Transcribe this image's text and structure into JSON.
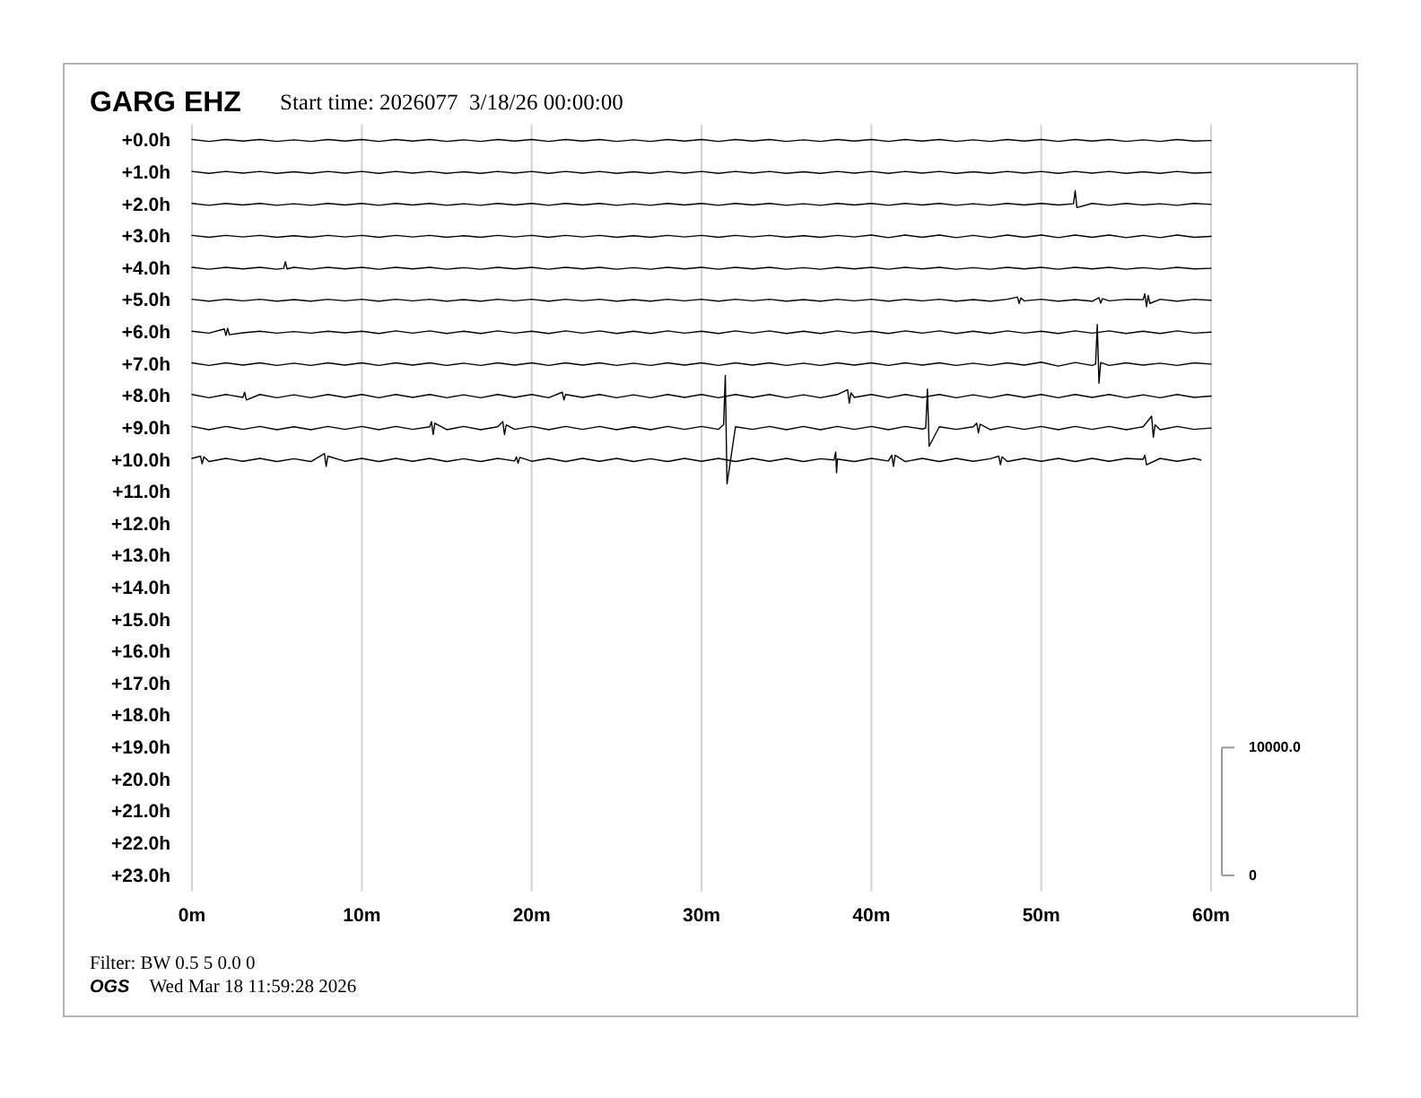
{
  "chart_data": {
    "type": "line",
    "title": "GARG EHZ",
    "subtitle": "Start time: 2026077  3/18/26 00:00:00",
    "annotations": [
      "Filter: BW 0.5 5 0.0 0",
      "OGS",
      "Wed Mar 18 11:59:28 2026"
    ],
    "xlim": [
      0,
      60
    ],
    "xticks": [
      {
        "value": 0,
        "label": "0m"
      },
      {
        "value": 10,
        "label": "10m"
      },
      {
        "value": 20,
        "label": "20m"
      },
      {
        "value": 30,
        "label": "30m"
      },
      {
        "value": 40,
        "label": "40m"
      },
      {
        "value": 50,
        "label": "50m"
      },
      {
        "value": 60,
        "label": "60m"
      }
    ],
    "ylim": [
      23.5,
      -0.5
    ],
    "yticks": [
      {
        "value": 0,
        "label": "+0.0h"
      },
      {
        "value": 1,
        "label": "+1.0h"
      },
      {
        "value": 2,
        "label": "+2.0h"
      },
      {
        "value": 3,
        "label": "+3.0h"
      },
      {
        "value": 4,
        "label": "+4.0h"
      },
      {
        "value": 5,
        "label": "+5.0h"
      },
      {
        "value": 6,
        "label": "+6.0h"
      },
      {
        "value": 7,
        "label": "+7.0h"
      },
      {
        "value": 8,
        "label": "+8.0h"
      },
      {
        "value": 9,
        "label": "+9.0h"
      },
      {
        "value": 10,
        "label": "+10.0h"
      },
      {
        "value": 11,
        "label": "+11.0h"
      },
      {
        "value": 12,
        "label": "+12.0h"
      },
      {
        "value": 13,
        "label": "+13.0h"
      },
      {
        "value": 14,
        "label": "+14.0h"
      },
      {
        "value": 15,
        "label": "+15.0h"
      },
      {
        "value": 16,
        "label": "+16.0h"
      },
      {
        "value": 17,
        "label": "+17.0h"
      },
      {
        "value": 18,
        "label": "+18.0h"
      },
      {
        "value": 19,
        "label": "+19.0h"
      },
      {
        "value": 20,
        "label": "+20.0h"
      },
      {
        "value": 21,
        "label": "+21.0h"
      },
      {
        "value": 22,
        "label": "+22.0h"
      },
      {
        "value": 23,
        "label": "+23.0h"
      }
    ],
    "y2lim": [
      -1250,
      58750
    ],
    "y2ticks": [
      0,
      {
        "value": 10000,
        "label": "10000.0"
      }
    ],
    "grid": "x",
    "x": [
      0,
      1,
      2,
      3,
      4,
      5,
      6,
      7,
      8,
      9,
      10,
      11,
      12,
      13,
      14,
      15,
      16,
      17,
      18,
      19,
      20,
      21,
      22,
      23,
      24,
      25,
      26,
      27,
      28,
      29,
      30,
      31,
      32,
      33,
      34,
      35,
      36,
      37,
      38,
      39,
      40,
      41,
      42,
      43,
      44,
      45,
      46,
      47,
      48,
      49,
      50,
      51,
      52,
      53,
      54,
      55,
      56,
      57,
      58,
      59,
      60
    ],
    "series": [
      {
        "color": "#000000",
        "values": [
          -0.03,
          0.03,
          -0.03,
          0.02,
          -0.03,
          0.03,
          -0.02,
          0.03,
          -0.03,
          0.02,
          -0.03,
          0.03,
          -0.03,
          0.02,
          -0.03,
          0.03,
          -0.02,
          0.03,
          -0.03,
          0.02,
          -0.03,
          0.03,
          -0.03,
          0.02,
          -0.03,
          0.03,
          -0.02,
          0.03,
          -0.03,
          0.02,
          -0.03,
          0.03,
          -0.03,
          0.02,
          -0.03,
          0.03,
          -0.02,
          0.03,
          -0.03,
          0.02,
          -0.03,
          0.03,
          -0.03,
          0.02,
          -0.03,
          0.03,
          -0.02,
          0.03,
          -0.03,
          0.02,
          -0.03,
          0.03,
          -0.03,
          0.02,
          -0.03,
          0.03,
          -0.02,
          0.03,
          -0.03,
          0.02,
          0
        ]
      },
      {
        "color": "#000000",
        "values": [
          0.97,
          1.03,
          0.97,
          1.02,
          0.97,
          1.03,
          0.98,
          1.03,
          0.97,
          1.02,
          0.97,
          1.03,
          0.97,
          1.02,
          0.97,
          1.03,
          0.98,
          1.03,
          0.97,
          1.02,
          0.97,
          1.03,
          0.97,
          1.02,
          0.97,
          1.03,
          0.98,
          1.03,
          0.97,
          1.02,
          0.97,
          1.03,
          0.97,
          1.02,
          0.97,
          1.03,
          0.98,
          1.03,
          0.97,
          1.02,
          0.97,
          1.03,
          0.97,
          1.02,
          0.97,
          1.03,
          0.98,
          1.03,
          0.97,
          1.02,
          0.97,
          1.03,
          0.97,
          1.02,
          0.97,
          1.03,
          0.98,
          1.03,
          0.97,
          1.02,
          1
        ]
      },
      {
        "color": "#000000",
        "x": [
          0,
          1,
          2,
          3,
          4,
          5,
          6,
          7,
          8,
          9,
          10,
          11,
          12,
          13,
          14,
          15,
          16,
          17,
          18,
          19,
          20,
          21,
          22,
          23,
          24,
          25,
          26,
          27,
          28,
          29,
          30,
          31,
          32,
          33,
          34,
          35,
          36,
          37,
          38,
          39,
          40,
          41,
          42,
          43,
          44,
          45,
          46,
          47,
          48,
          49,
          50,
          51,
          51.9,
          52,
          52.1,
          53,
          54,
          55,
          56,
          57,
          58,
          59,
          60
        ],
        "values": [
          1.97,
          2.03,
          1.97,
          2.02,
          1.97,
          2.03,
          1.98,
          2.03,
          1.97,
          2.02,
          1.97,
          2.03,
          1.97,
          2.02,
          1.97,
          2.03,
          1.98,
          2.03,
          1.97,
          2.02,
          1.97,
          2.03,
          1.97,
          2.02,
          1.97,
          2.03,
          1.98,
          2.03,
          1.97,
          2.02,
          1.97,
          2.03,
          1.97,
          2.02,
          1.97,
          2.03,
          1.98,
          2.03,
          1.97,
          2.02,
          1.97,
          2.03,
          1.97,
          2.02,
          1.97,
          2.03,
          1.98,
          2.03,
          1.97,
          2.02,
          1.97,
          2.02,
          1.98,
          1.57,
          2.1,
          1.97,
          2.03,
          1.97,
          2.02,
          1.98,
          2.03,
          1.97,
          2
        ]
      },
      {
        "color": "#000000",
        "values": [
          2.97,
          3.03,
          2.97,
          3.02,
          2.97,
          3.03,
          2.98,
          3.03,
          2.97,
          3.02,
          2.97,
          3.03,
          2.97,
          3.02,
          2.97,
          3.03,
          2.98,
          3.03,
          2.97,
          3.02,
          2.97,
          3.03,
          2.97,
          3.02,
          2.97,
          3.03,
          2.98,
          3.03,
          2.97,
          3.02,
          2.97,
          3.03,
          2.97,
          3.02,
          2.97,
          3.03,
          2.98,
          3.03,
          2.97,
          3.02,
          2.96,
          3.04,
          2.96,
          3.03,
          2.96,
          3.04,
          2.97,
          3.04,
          2.96,
          3.03,
          2.96,
          3.04,
          2.96,
          3.03,
          2.96,
          3.04,
          2.97,
          3.04,
          2.96,
          3.03,
          3
        ]
      },
      {
        "color": "#000000",
        "x": [
          0,
          1,
          2,
          3,
          4,
          5,
          5.4,
          5.5,
          5.6,
          6,
          7,
          8,
          9,
          10,
          11,
          12,
          13,
          14,
          15,
          16,
          17,
          18,
          19,
          20,
          21,
          22,
          23,
          24,
          25,
          26,
          27,
          28,
          29,
          30,
          31,
          32,
          33,
          34,
          35,
          36,
          37,
          38,
          39,
          40,
          41,
          42,
          43,
          44,
          45,
          46,
          47,
          48,
          49,
          50,
          51,
          52,
          53,
          54,
          55,
          56,
          57,
          58,
          59,
          60
        ],
        "values": [
          3.97,
          4.03,
          3.97,
          4.02,
          3.97,
          4.03,
          4,
          3.79,
          4.02,
          3.97,
          4.03,
          3.97,
          4.02,
          3.97,
          4.03,
          3.97,
          4.02,
          3.97,
          4.03,
          3.98,
          4.03,
          3.97,
          4.02,
          3.97,
          4.03,
          3.97,
          4.02,
          3.97,
          4.03,
          3.98,
          4.03,
          3.97,
          4.02,
          3.97,
          4.03,
          3.97,
          4.02,
          3.97,
          4.03,
          3.98,
          4.03,
          3.97,
          4.02,
          3.97,
          4.03,
          3.97,
          4.02,
          3.97,
          4.03,
          3.98,
          4.03,
          3.97,
          4.02,
          3.97,
          4.03,
          3.97,
          4.02,
          3.97,
          4.03,
          3.98,
          4.03,
          3.97,
          4.02,
          4
        ]
      },
      {
        "color": "#000000",
        "x": [
          0,
          1,
          2,
          3,
          4,
          5,
          6,
          7,
          8,
          9,
          10,
          11,
          12,
          13,
          14,
          15,
          16,
          17,
          18,
          19,
          20,
          21,
          22,
          23,
          24,
          25,
          26,
          27,
          28,
          29,
          30,
          31,
          32,
          33,
          34,
          35,
          36,
          37,
          38,
          39,
          40,
          41,
          42,
          43,
          44,
          45,
          46,
          47,
          48,
          48.6,
          48.7,
          48.8,
          49,
          50,
          51,
          52,
          53,
          53.4,
          53.5,
          53.6,
          54,
          55,
          56,
          56.1,
          56.2,
          56.3,
          56.4,
          57,
          58,
          59,
          60
        ],
        "values": [
          4.97,
          5.03,
          4.97,
          5.02,
          4.97,
          5.03,
          4.98,
          5.03,
          4.97,
          5.02,
          4.97,
          5.03,
          4.97,
          5.02,
          4.97,
          5.03,
          4.98,
          5.03,
          4.97,
          5.02,
          4.97,
          5.03,
          4.97,
          5.02,
          4.97,
          5.03,
          4.98,
          5.03,
          4.97,
          5.02,
          4.97,
          5.03,
          4.97,
          5.02,
          4.97,
          5.03,
          4.98,
          5.03,
          4.97,
          5.02,
          4.97,
          5.03,
          4.97,
          5.02,
          4.97,
          5.03,
          4.98,
          5.03,
          4.97,
          4.9,
          5.1,
          4.93,
          5.02,
          4.97,
          5.03,
          4.98,
          5.03,
          4.92,
          5.09,
          4.95,
          5.02,
          4.97,
          4.98,
          4.8,
          5.2,
          4.85,
          5.1,
          4.97,
          5.03,
          4.97,
          5
        ]
      },
      {
        "color": "#000000",
        "x": [
          0,
          1,
          1.9,
          2,
          2.1,
          2.2,
          3,
          4,
          5,
          6,
          7,
          8,
          9,
          10,
          11,
          12,
          13,
          14,
          15,
          16,
          17,
          18,
          19,
          20,
          21,
          22,
          23,
          24,
          25,
          26,
          27,
          28,
          29,
          30,
          31,
          32,
          33,
          34,
          35,
          36,
          37,
          38,
          39,
          40,
          41,
          42,
          43,
          44,
          45,
          46,
          47,
          48,
          49,
          50,
          51,
          52,
          53,
          54,
          55,
          56,
          57,
          58,
          59,
          60
        ],
        "values": [
          5.97,
          6.03,
          5.9,
          6.1,
          5.88,
          6.08,
          6.02,
          5.97,
          6.03,
          5.98,
          6.03,
          5.97,
          6.02,
          5.97,
          6.04,
          5.96,
          6.03,
          5.96,
          6.04,
          5.97,
          6.04,
          5.96,
          6.03,
          5.97,
          6.04,
          5.96,
          6.03,
          5.96,
          6.04,
          5.97,
          6.04,
          5.96,
          6.03,
          5.97,
          6.04,
          5.96,
          6.03,
          5.96,
          6.04,
          5.97,
          6.04,
          5.96,
          6.03,
          5.97,
          6.04,
          5.96,
          6.03,
          5.96,
          6.04,
          5.97,
          6.04,
          5.96,
          6.03,
          5.97,
          6.04,
          5.96,
          6.03,
          5.96,
          6.04,
          5.97,
          6.04,
          5.96,
          6.03,
          6
        ]
      },
      {
        "color": "#000000",
        "x": [
          0,
          1,
          2,
          3,
          4,
          5,
          6,
          7,
          8,
          9,
          10,
          11,
          12,
          13,
          14,
          15,
          16,
          17,
          18,
          19,
          20,
          21,
          22,
          23,
          24,
          25,
          26,
          27,
          28,
          29,
          30,
          31,
          32,
          33,
          34,
          35,
          36,
          37,
          38,
          39,
          40,
          41,
          42,
          43,
          44,
          45,
          46,
          47,
          48,
          49,
          50,
          51,
          52,
          53,
          53.2,
          53.3,
          53.4,
          53.5,
          54,
          55,
          56,
          57,
          58,
          59,
          60
        ],
        "values": [
          6.96,
          7.04,
          6.96,
          7.03,
          6.96,
          7.04,
          6.97,
          7.04,
          6.96,
          7.03,
          6.96,
          7.04,
          6.96,
          7.03,
          6.96,
          7.04,
          6.97,
          7.04,
          6.96,
          7.03,
          6.96,
          7.04,
          6.96,
          7.03,
          6.96,
          7.04,
          6.97,
          7.04,
          6.96,
          7.03,
          6.96,
          7.04,
          6.96,
          7.03,
          6.96,
          7.04,
          6.97,
          7.04,
          6.96,
          7.03,
          6.96,
          7.04,
          6.96,
          7.03,
          6.96,
          7.04,
          6.97,
          7.04,
          6.96,
          7.03,
          6.94,
          7.06,
          6.95,
          7.04,
          7,
          5.76,
          7.6,
          6.95,
          7.04,
          6.96,
          7.03,
          6.97,
          7.04,
          6.96,
          7
        ]
      },
      {
        "color": "#000000",
        "x": [
          0,
          1,
          2,
          3,
          3.1,
          3.2,
          4,
          5,
          6,
          7,
          8,
          9,
          10,
          11,
          12,
          13,
          14,
          15,
          16,
          17,
          18,
          19,
          20,
          21,
          21.8,
          21.9,
          22,
          23,
          24,
          25,
          26,
          27,
          28,
          29,
          30,
          31,
          32,
          33,
          34,
          35,
          36,
          37,
          38,
          38.6,
          38.7,
          38.8,
          39,
          40,
          41,
          42,
          43,
          44,
          45,
          46,
          47,
          48,
          49,
          50,
          51,
          52,
          53,
          54,
          55,
          56,
          57,
          58,
          59,
          60
        ],
        "values": [
          7.95,
          8.05,
          7.95,
          8.04,
          7.88,
          8.12,
          7.95,
          8.05,
          7.96,
          8.05,
          7.95,
          8.04,
          7.95,
          8.05,
          7.95,
          8.04,
          7.95,
          8.05,
          7.96,
          8.05,
          7.95,
          8.04,
          7.95,
          8.05,
          7.88,
          8.12,
          7.95,
          8.04,
          7.95,
          8.05,
          7.96,
          8.05,
          7.95,
          8.04,
          7.95,
          8.05,
          7.95,
          8.04,
          7.95,
          8.05,
          7.96,
          8.05,
          7.95,
          7.8,
          8.22,
          7.9,
          8.04,
          7.95,
          8.05,
          7.95,
          8.04,
          7.95,
          8.05,
          7.96,
          8.05,
          7.95,
          8.04,
          7.95,
          8.05,
          7.95,
          8.04,
          7.95,
          8.05,
          7.96,
          8.05,
          7.95,
          8.04,
          8
        ]
      },
      {
        "color": "#000000",
        "x": [
          0,
          1,
          2,
          3,
          4,
          5,
          6,
          7,
          8,
          9,
          10,
          11,
          12,
          13,
          14,
          14.1,
          14.2,
          14.3,
          15,
          16,
          17,
          18,
          18.3,
          18.4,
          18.5,
          19,
          20,
          21,
          22,
          23,
          24,
          25,
          26,
          27,
          28,
          29,
          30,
          31,
          31.3,
          31.4,
          31.5,
          32,
          33,
          34,
          35,
          36,
          37,
          38,
          39,
          40,
          41,
          42,
          43,
          43.2,
          43.3,
          43.4,
          44,
          45,
          46,
          46.2,
          46.3,
          46.4,
          47,
          48,
          49,
          50,
          51,
          52,
          53,
          54,
          55,
          56,
          56.5,
          56.6,
          56.7,
          57,
          58,
          59,
          60
        ],
        "values": [
          8.95,
          9.05,
          8.95,
          9.04,
          8.95,
          9.05,
          8.96,
          9.05,
          8.95,
          9.04,
          8.95,
          9.05,
          8.95,
          9.04,
          8.96,
          8.8,
          9.2,
          8.85,
          9.05,
          8.95,
          9.05,
          8.96,
          8.8,
          9.2,
          8.9,
          9.04,
          8.95,
          9.05,
          8.95,
          9.04,
          8.95,
          9.05,
          8.96,
          9.05,
          8.95,
          9.04,
          8.95,
          9.04,
          8.9,
          7.35,
          10.75,
          8.96,
          9.04,
          8.95,
          9.05,
          8.95,
          9.05,
          8.95,
          9.04,
          8.95,
          9.05,
          8.95,
          9.03,
          9,
          7.78,
          9.57,
          8.96,
          9.04,
          8.96,
          8.85,
          9.15,
          8.88,
          9.05,
          8.95,
          9.04,
          8.95,
          9.05,
          8.95,
          9.04,
          8.95,
          9.05,
          8.96,
          8.63,
          9.29,
          8.9,
          9.05,
          8.95,
          9.04,
          9
        ]
      },
      {
        "color": "#000000",
        "x": [
          0,
          0.5,
          0.6,
          0.7,
          1,
          2,
          3,
          4,
          5,
          6,
          7,
          7.8,
          7.9,
          8,
          9,
          10,
          11,
          12,
          13,
          14,
          15,
          16,
          17,
          18,
          19,
          19.1,
          19.2,
          19.3,
          20,
          21,
          22,
          23,
          24,
          25,
          26,
          27,
          28,
          29,
          30,
          31,
          32,
          33,
          34,
          35,
          36,
          37,
          37.8,
          37.9,
          37.95,
          38,
          39,
          40,
          41,
          41.2,
          41.3,
          41.4,
          42,
          43,
          44,
          45,
          46,
          47,
          47.5,
          47.6,
          47.7,
          48,
          49,
          50,
          51,
          52,
          53,
          54,
          55,
          56,
          56.1,
          56.2,
          57,
          58,
          59,
          59.4
        ],
        "values": [
          9.95,
          9.88,
          10.12,
          9.9,
          10.05,
          9.95,
          10.04,
          9.95,
          10.05,
          9.96,
          10.05,
          9.8,
          10.2,
          9.88,
          10.04,
          9.95,
          10.05,
          9.95,
          10.04,
          9.95,
          10.05,
          9.96,
          10.05,
          9.95,
          10.03,
          9.9,
          10.1,
          9.92,
          10.04,
          9.95,
          10.05,
          9.95,
          10.04,
          9.95,
          10.05,
          9.96,
          10.05,
          9.95,
          10.04,
          9.95,
          10.05,
          9.95,
          10.04,
          9.95,
          10.05,
          9.96,
          10,
          9.75,
          10.4,
          9.97,
          10.05,
          9.95,
          10.03,
          9.85,
          10.2,
          9.85,
          10.05,
          9.95,
          10.05,
          9.95,
          10.04,
          9.96,
          9.88,
          10.15,
          9.9,
          10.05,
          9.95,
          10.04,
          9.95,
          10.05,
          9.95,
          10.04,
          9.95,
          9.98,
          9.85,
          10.15,
          9.95,
          10.04,
          9.95,
          10
        ]
      }
    ]
  }
}
